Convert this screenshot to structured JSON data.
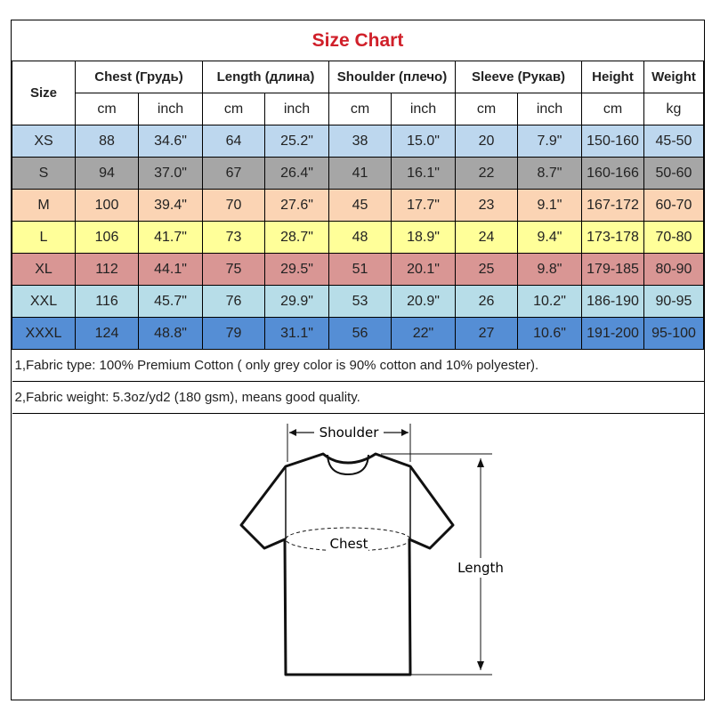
{
  "title": "Size Chart",
  "headers": {
    "size": "Size",
    "chest": "Chest  (Грудь)",
    "length": "Length (длина)",
    "shoulder": "Shoulder (плечо)",
    "sleeve": "Sleeve (Рукав)",
    "height": "Height",
    "weight": "Weight"
  },
  "units": [
    "cm",
    "inch",
    "cm",
    "inch",
    "cm",
    "inch",
    "cm",
    "inch",
    "cm",
    "kg"
  ],
  "rows": [
    {
      "color": "#bdd7ee",
      "cells": [
        "XS",
        "88",
        "34.6\"",
        "64",
        "25.2\"",
        "38",
        "15.0\"",
        "20",
        "7.9\"",
        "150-160",
        "45-50"
      ]
    },
    {
      "color": "#a6a6a6",
      "cells": [
        "S",
        "94",
        "37.0\"",
        "67",
        "26.4\"",
        "41",
        "16.1\"",
        "22",
        "8.7\"",
        "160-166",
        "50-60"
      ]
    },
    {
      "color": "#fbd4b4",
      "cells": [
        "M",
        "100",
        "39.4\"",
        "70",
        "27.6\"",
        "45",
        "17.7\"",
        "23",
        "9.1\"",
        "167-172",
        "60-70"
      ]
    },
    {
      "color": "#ffff99",
      "cells": [
        "L",
        "106",
        "41.7\"",
        "73",
        "28.7\"",
        "48",
        "18.9\"",
        "24",
        "9.4\"",
        "173-178",
        "70-80"
      ]
    },
    {
      "color": "#d99694",
      "cells": [
        "XL",
        "112",
        "44.1\"",
        "75",
        "29.5\"",
        "51",
        "20.1\"",
        "25",
        "9.8\"",
        "179-185",
        "80-90"
      ]
    },
    {
      "color": "#b7dde8",
      "cells": [
        "XXL",
        "116",
        "45.7\"",
        "76",
        "29.9\"",
        "53",
        "20.9\"",
        "26",
        "10.2\"",
        "186-190",
        "90-95"
      ]
    },
    {
      "color": "#558ed5",
      "cells": [
        "XXXL",
        "124",
        "48.8\"",
        "79",
        "31.1\"",
        "56",
        "22\"",
        "27",
        "10.6\"",
        "191-200",
        "95-100"
      ]
    }
  ],
  "notes": [
    "1,Fabric type: 100% Premium Cotton ( only grey color is 90% cotton and 10% polyester).",
    "2,Fabric weight: 5.3oz/yd2 (180 gsm), means good quality."
  ],
  "diagram": {
    "shoulder": "Shoulder",
    "chest": "Chest",
    "length": "Length"
  }
}
